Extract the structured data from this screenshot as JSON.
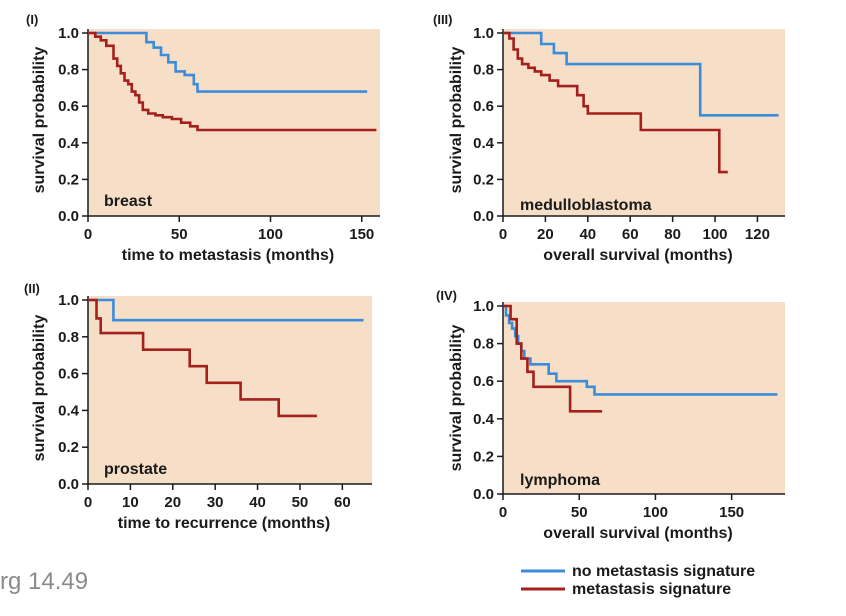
{
  "caption": "rg 14.49",
  "colors": {
    "no_signature": "#3b8ddb",
    "signature": "#a3201c",
    "plot_bg": "#f6dfc6"
  },
  "legend": {
    "placement": "bottom-right",
    "entries": [
      "no metastasis signature",
      "metastasis signature"
    ]
  },
  "chart_data": [
    {
      "type": "line",
      "step": true,
      "panel_label": "(I)",
      "tissue": "breast",
      "xlabel": "time to metastasis (months)",
      "ylabel": "survival probability",
      "xlim": [
        0,
        160
      ],
      "ylim": [
        0,
        1
      ],
      "xticks": [
        "0",
        "50",
        "100",
        "150"
      ],
      "yticks": [
        "0.0",
        "0.2",
        "0.4",
        "0.6",
        "0.8",
        "1.0"
      ],
      "series": [
        {
          "name": "no metastasis signature",
          "x": [
            0,
            28,
            32,
            36,
            40,
            44,
            48,
            53,
            58,
            60,
            153
          ],
          "y": [
            1.0,
            1.0,
            0.95,
            0.92,
            0.88,
            0.84,
            0.79,
            0.77,
            0.72,
            0.68,
            0.68
          ]
        },
        {
          "name": "metastasis signature",
          "x": [
            0,
            4,
            7,
            10,
            14,
            16,
            18,
            20,
            22,
            24,
            26,
            28,
            30,
            33,
            37,
            41,
            46,
            51,
            56,
            60,
            158
          ],
          "y": [
            1.0,
            0.98,
            0.96,
            0.93,
            0.86,
            0.82,
            0.78,
            0.74,
            0.72,
            0.68,
            0.66,
            0.62,
            0.58,
            0.56,
            0.55,
            0.54,
            0.53,
            0.51,
            0.49,
            0.47,
            0.47
          ]
        }
      ]
    },
    {
      "type": "line",
      "step": true,
      "panel_label": "(II)",
      "tissue": "prostate",
      "xlabel": "time to recurrence (months)",
      "ylabel": "survival probability",
      "xlim": [
        0,
        67
      ],
      "ylim": [
        0,
        1
      ],
      "xticks": [
        "0",
        "10",
        "20",
        "30",
        "40",
        "50",
        "60"
      ],
      "yticks": [
        "0.0",
        "0.2",
        "0.4",
        "0.6",
        "0.8",
        "1.0"
      ],
      "series": [
        {
          "name": "no metastasis signature",
          "x": [
            0,
            5,
            6,
            65
          ],
          "y": [
            1.0,
            1.0,
            0.89,
            0.89
          ]
        },
        {
          "name": "metastasis signature",
          "x": [
            0,
            2,
            3,
            13,
            24,
            28,
            36,
            45,
            54
          ],
          "y": [
            1.0,
            0.9,
            0.82,
            0.73,
            0.64,
            0.55,
            0.46,
            0.37,
            0.37
          ]
        }
      ]
    },
    {
      "type": "line",
      "step": true,
      "panel_label": "(III)",
      "tissue": "medulloblastoma",
      "xlabel": "overall survival (months)",
      "ylabel": "survival probability",
      "xlim": [
        0,
        133
      ],
      "ylim": [
        0,
        1
      ],
      "xticks": [
        "0",
        "20",
        "40",
        "60",
        "80",
        "100",
        "120"
      ],
      "yticks": [
        "0.0",
        "0.2",
        "0.4",
        "0.6",
        "0.8",
        "1.0"
      ],
      "series": [
        {
          "name": "no metastasis signature",
          "x": [
            0,
            15,
            18,
            24,
            30,
            93,
            130
          ],
          "y": [
            1.0,
            1.0,
            0.94,
            0.89,
            0.83,
            0.55,
            0.55
          ]
        },
        {
          "name": "metastasis signature",
          "x": [
            0,
            3,
            5,
            7,
            9,
            12,
            15,
            18,
            22,
            26,
            35,
            38,
            40,
            65,
            100,
            102,
            106
          ],
          "y": [
            1.0,
            0.97,
            0.91,
            0.86,
            0.83,
            0.81,
            0.79,
            0.77,
            0.74,
            0.71,
            0.66,
            0.6,
            0.56,
            0.47,
            0.47,
            0.24,
            0.24
          ]
        }
      ]
    },
    {
      "type": "line",
      "step": true,
      "panel_label": "(IV)",
      "tissue": "lymphoma",
      "xlabel": "overall survival (months)",
      "ylabel": "survival probability",
      "xlim": [
        0,
        185
      ],
      "ylim": [
        0,
        1
      ],
      "xticks": [
        "0",
        "50",
        "100",
        "150"
      ],
      "yticks": [
        "0.0",
        "0.2",
        "0.4",
        "0.6",
        "0.8",
        "1.0"
      ],
      "series": [
        {
          "name": "no metastasis signature",
          "x": [
            0,
            2,
            4,
            6,
            8,
            10,
            12,
            14,
            18,
            30,
            35,
            55,
            60,
            180
          ],
          "y": [
            1.0,
            0.95,
            0.91,
            0.88,
            0.84,
            0.8,
            0.76,
            0.72,
            0.69,
            0.64,
            0.6,
            0.57,
            0.53,
            0.53
          ]
        },
        {
          "name": "metastasis signature",
          "x": [
            0,
            5,
            9,
            12,
            16,
            20,
            44,
            65
          ],
          "y": [
            1.0,
            0.93,
            0.8,
            0.72,
            0.65,
            0.57,
            0.44,
            0.44
          ]
        }
      ]
    }
  ]
}
